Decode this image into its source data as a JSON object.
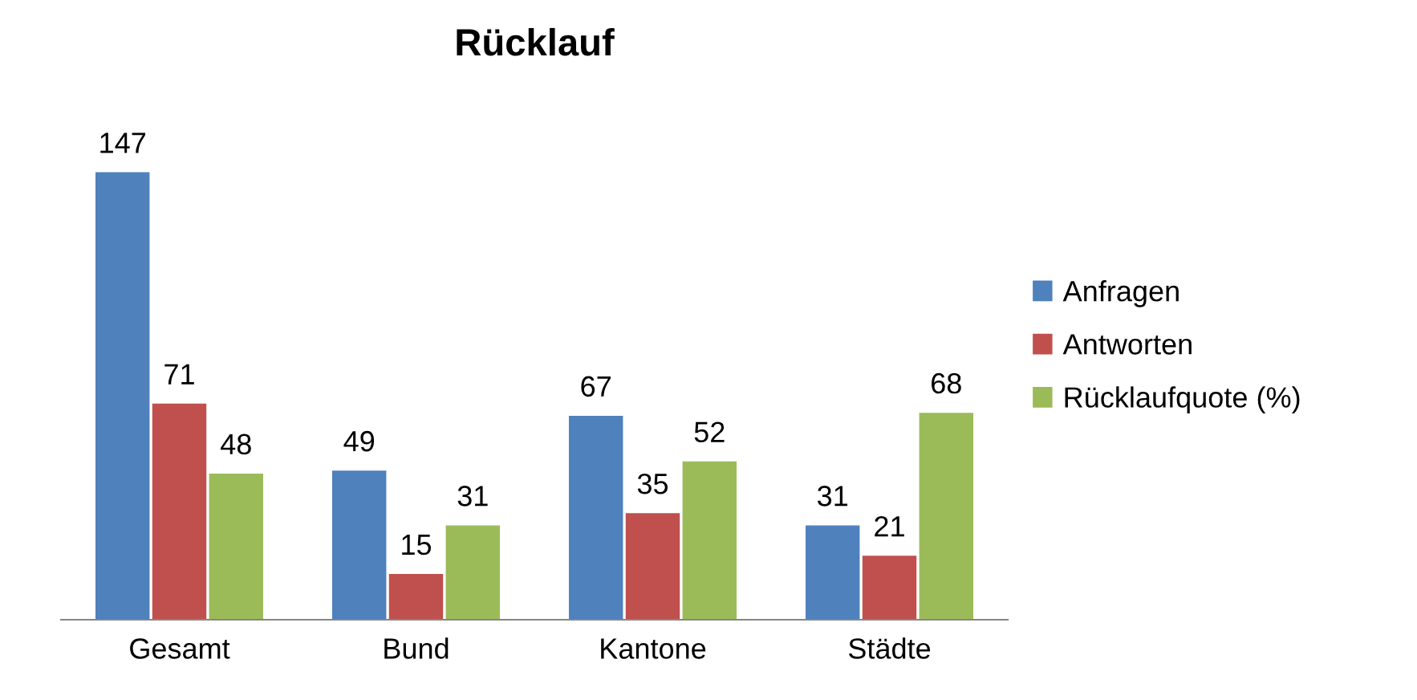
{
  "chart_data": {
    "type": "bar",
    "title": "Rücklauf",
    "categories": [
      "Gesamt",
      "Bund",
      "Kantone",
      "Städte"
    ],
    "series": [
      {
        "name": "Anfragen",
        "color": "#4f81bd",
        "values": [
          147,
          49,
          67,
          31
        ]
      },
      {
        "name": "Antworten",
        "color": "#c0504d",
        "values": [
          71,
          15,
          35,
          21
        ]
      },
      {
        "name": "Rücklaufquote (%)",
        "color": "#9bbb59",
        "values": [
          48,
          31,
          52,
          68
        ]
      }
    ],
    "data_labels": true,
    "legend": "right",
    "grid": false
  }
}
